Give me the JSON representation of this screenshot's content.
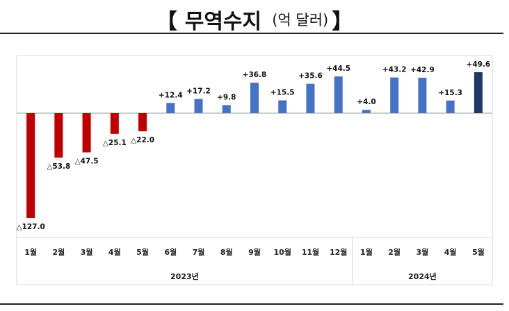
{
  "title": {
    "bracket_open": "【",
    "main": "무역수지",
    "unit": "(억 달러)",
    "bracket_close": "】"
  },
  "chart_data": {
    "type": "bar",
    "title": "무역수지",
    "unit": "억 달러",
    "categories": [
      "1월",
      "2월",
      "3월",
      "4월",
      "5월",
      "6월",
      "7월",
      "8월",
      "9월",
      "10월",
      "11월",
      "12월",
      "1월",
      "2월",
      "3월",
      "4월",
      "5월"
    ],
    "years": [
      {
        "label": "2023년",
        "count": 12
      },
      {
        "label": "2024년",
        "count": 5
      }
    ],
    "values": [
      -127.0,
      -53.8,
      -47.5,
      -25.1,
      -22.0,
      12.4,
      17.2,
      9.8,
      36.8,
      15.5,
      35.6,
      44.5,
      4.0,
      43.2,
      42.9,
      15.3,
      49.6
    ],
    "labels": [
      "△127.0",
      "△53.8",
      "△47.5",
      "△25.1",
      "△22.0",
      "+12.4",
      "+17.2",
      "+9.8",
      "+36.8",
      "+15.5",
      "+35.6",
      "+44.5",
      "+4.0",
      "+43.2",
      "+42.9",
      "+15.3",
      "+49.6"
    ],
    "colors": {
      "negative": "#c00000",
      "positive": "#4472c4",
      "latest": "#1f3864",
      "gridline": "#d9d9d9",
      "axis": "#555555"
    },
    "ylim": [
      -127,
      49.6
    ],
    "grid": false,
    "legend": "none"
  }
}
